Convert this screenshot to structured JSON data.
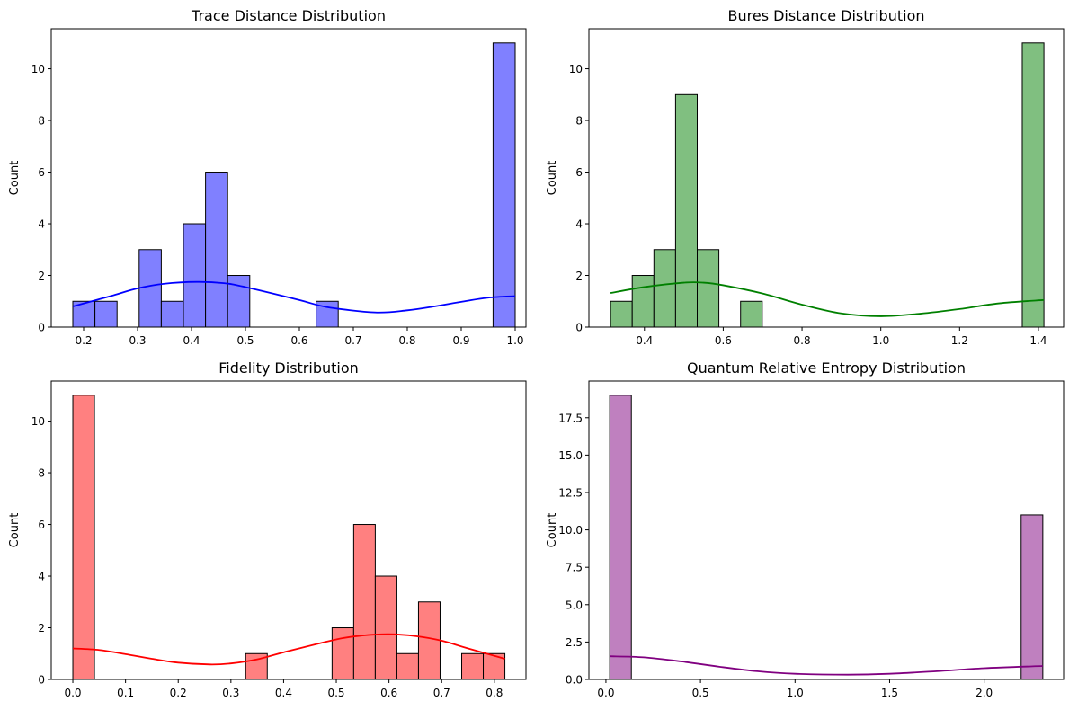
{
  "chart_data": [
    {
      "type": "bar",
      "title": "Trace Distance Distribution",
      "xlabel": "",
      "ylabel": "Count",
      "xlim": [
        0.14,
        1.02
      ],
      "ylim": [
        0,
        11.55
      ],
      "xticks": [
        0.2,
        0.3,
        0.4,
        0.5,
        0.6,
        0.7,
        0.8,
        0.9,
        1.0
      ],
      "xtick_labels": [
        "0.2",
        "0.3",
        "0.4",
        "0.5",
        "0.6",
        "0.7",
        "0.8",
        "0.9",
        "1.0"
      ],
      "yticks": [
        0,
        2,
        4,
        6,
        8,
        10
      ],
      "ytick_labels": [
        "0",
        "2",
        "4",
        "6",
        "8",
        "10"
      ],
      "bin_start": 0.18,
      "bin_width": 0.041,
      "counts": [
        1,
        1,
        0,
        3,
        1,
        4,
        6,
        2,
        0,
        0,
        0,
        1,
        0,
        0,
        0,
        0,
        0,
        0,
        0,
        11
      ],
      "kde": [
        [
          0.18,
          0.8
        ],
        [
          0.25,
          1.2
        ],
        [
          0.3,
          1.5
        ],
        [
          0.35,
          1.68
        ],
        [
          0.41,
          1.75
        ],
        [
          0.46,
          1.7
        ],
        [
          0.5,
          1.55
        ],
        [
          0.6,
          1.05
        ],
        [
          0.65,
          0.78
        ],
        [
          0.74,
          0.57
        ],
        [
          0.8,
          0.65
        ],
        [
          0.85,
          0.8
        ],
        [
          0.9,
          0.98
        ],
        [
          0.95,
          1.14
        ],
        [
          1.0,
          1.2
        ]
      ],
      "color": "#0000ff",
      "fill": "#8080ff",
      "grid": false
    },
    {
      "type": "bar",
      "title": "Bures Distance Distribution",
      "xlabel": "",
      "ylabel": "Count",
      "xlim": [
        0.259,
        1.464
      ],
      "ylim": [
        0,
        11.55
      ],
      "xticks": [
        0.4,
        0.6,
        0.8,
        1.0,
        1.2,
        1.4
      ],
      "xtick_labels": [
        "0.4",
        "0.6",
        "0.8",
        "1.0",
        "1.2",
        "1.4"
      ],
      "yticks": [
        0,
        2,
        4,
        6,
        8,
        10
      ],
      "ytick_labels": [
        "0",
        "2",
        "4",
        "6",
        "8",
        "10"
      ],
      "bin_start": 0.314,
      "bin_width": 0.055,
      "counts": [
        1,
        2,
        3,
        9,
        3,
        0,
        1,
        0,
        0,
        0,
        0,
        0,
        0,
        0,
        0,
        0,
        0,
        0,
        0,
        11
      ],
      "kde": [
        [
          0.314,
          1.32
        ],
        [
          0.4,
          1.55
        ],
        [
          0.5,
          1.72
        ],
        [
          0.55,
          1.72
        ],
        [
          0.6,
          1.62
        ],
        [
          0.7,
          1.3
        ],
        [
          0.8,
          0.87
        ],
        [
          0.9,
          0.53
        ],
        [
          1.0,
          0.42
        ],
        [
          1.1,
          0.52
        ],
        [
          1.2,
          0.7
        ],
        [
          1.3,
          0.92
        ],
        [
          1.414,
          1.05
        ]
      ],
      "color": "#008000",
      "fill": "#80bf80",
      "grid": false
    },
    {
      "type": "bar",
      "title": "Fidelity Distribution",
      "xlabel": "",
      "ylabel": "Count",
      "xlim": [
        -0.041,
        0.86
      ],
      "ylim": [
        0,
        11.55
      ],
      "xticks": [
        0.0,
        0.1,
        0.2,
        0.3,
        0.4,
        0.5,
        0.6,
        0.7,
        0.8
      ],
      "xtick_labels": [
        "0.0",
        "0.1",
        "0.2",
        "0.3",
        "0.4",
        "0.5",
        "0.6",
        "0.7",
        "0.8"
      ],
      "yticks": [
        0,
        2,
        4,
        6,
        8,
        10
      ],
      "ytick_labels": [
        "0",
        "2",
        "4",
        "6",
        "8",
        "10"
      ],
      "bin_start": 0.0,
      "bin_width": 0.041,
      "counts": [
        11,
        0,
        0,
        0,
        0,
        0,
        0,
        0,
        1,
        0,
        0,
        0,
        2,
        6,
        4,
        1,
        3,
        0,
        1,
        1
      ],
      "kde": [
        [
          0.0,
          1.2
        ],
        [
          0.05,
          1.14
        ],
        [
          0.1,
          0.98
        ],
        [
          0.15,
          0.8
        ],
        [
          0.2,
          0.65
        ],
        [
          0.26,
          0.58
        ],
        [
          0.3,
          0.62
        ],
        [
          0.35,
          0.78
        ],
        [
          0.4,
          1.05
        ],
        [
          0.5,
          1.55
        ],
        [
          0.55,
          1.7
        ],
        [
          0.6,
          1.75
        ],
        [
          0.65,
          1.68
        ],
        [
          0.7,
          1.5
        ],
        [
          0.75,
          1.2
        ],
        [
          0.82,
          0.8
        ]
      ],
      "color": "#ff0000",
      "fill": "#ff8080",
      "grid": false
    },
    {
      "type": "bar",
      "title": "Quantum Relative Entropy Distribution",
      "xlabel": "",
      "ylabel": "Count",
      "xlim": [
        -0.09,
        2.42
      ],
      "ylim": [
        0,
        19.95
      ],
      "xticks": [
        0.0,
        0.5,
        1.0,
        1.5,
        2.0
      ],
      "xtick_labels": [
        "0.0",
        "0.5",
        "1.0",
        "1.5",
        "2.0"
      ],
      "yticks": [
        0,
        2.5,
        5,
        7.5,
        10,
        12.5,
        15,
        17.5
      ],
      "ytick_labels": [
        "0.0",
        "2.5",
        "5.0",
        "7.5",
        "10.0",
        "12.5",
        "15.0",
        "17.5"
      ],
      "bin_start": 0.02,
      "bin_width": 0.1145,
      "counts": [
        19,
        0,
        0,
        0,
        0,
        0,
        0,
        0,
        0,
        0,
        0,
        0,
        0,
        0,
        0,
        0,
        0,
        0,
        0,
        11
      ],
      "kde": [
        [
          0.02,
          1.55
        ],
        [
          0.2,
          1.48
        ],
        [
          0.4,
          1.2
        ],
        [
          0.6,
          0.85
        ],
        [
          0.8,
          0.55
        ],
        [
          1.0,
          0.38
        ],
        [
          1.28,
          0.32
        ],
        [
          1.5,
          0.38
        ],
        [
          1.75,
          0.55
        ],
        [
          2.0,
          0.75
        ],
        [
          2.31,
          0.9
        ]
      ],
      "color": "#800080",
      "fill": "#bf80bf",
      "grid": false
    }
  ]
}
